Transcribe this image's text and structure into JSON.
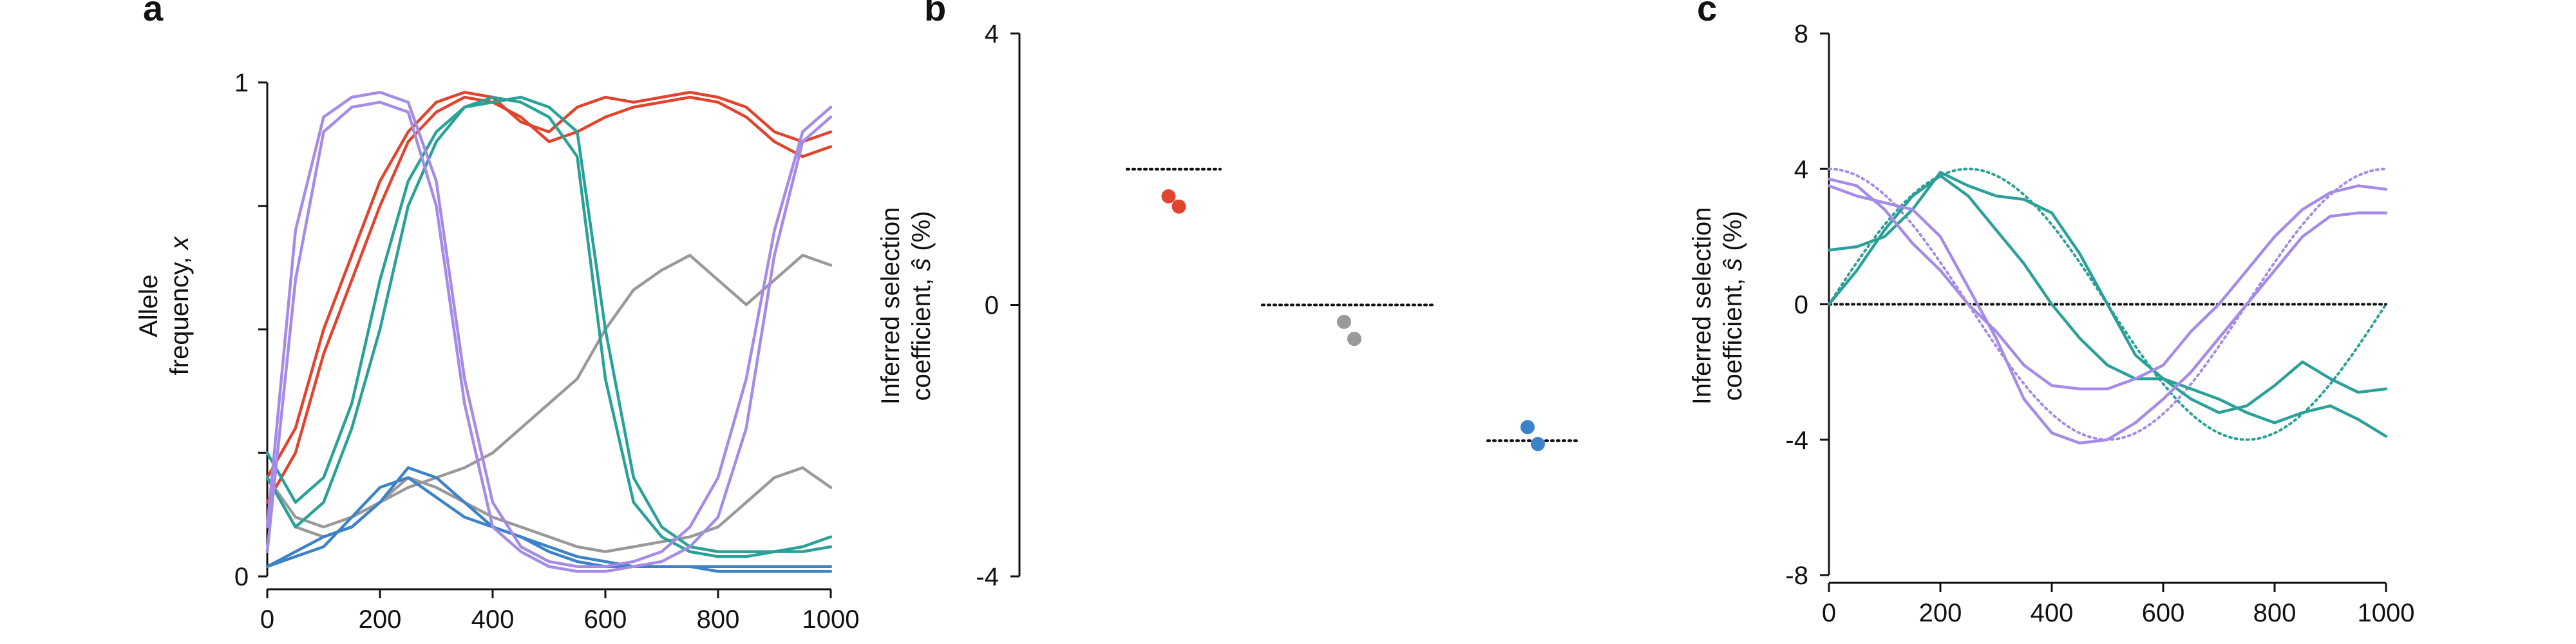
{
  "colors": {
    "red": "#e0442e",
    "gray": "#999999",
    "blue": "#3b82c8",
    "teal": "#2aa198",
    "purple": "#a58be8",
    "black": "#111111"
  },
  "chart_data": [
    {
      "panel": "a",
      "type": "line",
      "title": "",
      "xlabel": "",
      "ylabel_line1": "Allele",
      "ylabel_line2": "frequency,",
      "ylabel_var": "x",
      "xlim": [
        0,
        1000
      ],
      "ylim": [
        0,
        1
      ],
      "xticks": [
        0,
        200,
        400,
        600,
        800,
        1000
      ],
      "xtick_labels": [
        "0",
        "200",
        "400",
        "600",
        "800",
        "1000"
      ],
      "yticks": [
        0,
        0.25,
        0.5,
        0.75,
        1
      ],
      "ytick_labels": [
        "0",
        "",
        "",
        "",
        "1"
      ],
      "grid": false,
      "series": [
        {
          "color": "red",
          "x": [
            0,
            50,
            100,
            150,
            200,
            250,
            300,
            350,
            400,
            450,
            500,
            550,
            600,
            650,
            700,
            750,
            800,
            850,
            900,
            950,
            1000
          ],
          "y": [
            0.2,
            0.3,
            0.5,
            0.65,
            0.8,
            0.9,
            0.96,
            0.98,
            0.97,
            0.92,
            0.9,
            0.95,
            0.97,
            0.96,
            0.97,
            0.98,
            0.97,
            0.95,
            0.9,
            0.88,
            0.9
          ]
        },
        {
          "color": "red",
          "x": [
            0,
            50,
            100,
            150,
            200,
            250,
            300,
            350,
            400,
            450,
            500,
            550,
            600,
            650,
            700,
            750,
            800,
            850,
            900,
            950,
            1000
          ],
          "y": [
            0.15,
            0.25,
            0.45,
            0.6,
            0.75,
            0.88,
            0.94,
            0.97,
            0.96,
            0.93,
            0.88,
            0.9,
            0.93,
            0.95,
            0.96,
            0.97,
            0.96,
            0.93,
            0.88,
            0.85,
            0.87
          ]
        },
        {
          "color": "gray",
          "x": [
            0,
            50,
            100,
            150,
            200,
            250,
            300,
            350,
            400,
            450,
            500,
            550,
            600,
            650,
            700,
            750,
            800,
            850,
            900,
            950,
            1000
          ],
          "y": [
            0.2,
            0.12,
            0.1,
            0.12,
            0.15,
            0.18,
            0.2,
            0.22,
            0.25,
            0.3,
            0.35,
            0.4,
            0.5,
            0.58,
            0.62,
            0.65,
            0.6,
            0.55,
            0.6,
            0.65,
            0.63
          ]
        },
        {
          "color": "gray",
          "x": [
            0,
            50,
            100,
            150,
            200,
            250,
            300,
            350,
            400,
            450,
            500,
            550,
            600,
            650,
            700,
            750,
            800,
            850,
            900,
            950,
            1000
          ],
          "y": [
            0.2,
            0.1,
            0.08,
            0.1,
            0.15,
            0.2,
            0.18,
            0.15,
            0.12,
            0.1,
            0.08,
            0.06,
            0.05,
            0.06,
            0.07,
            0.08,
            0.1,
            0.15,
            0.2,
            0.22,
            0.18
          ]
        },
        {
          "color": "blue",
          "x": [
            0,
            50,
            100,
            150,
            200,
            250,
            300,
            350,
            400,
            450,
            500,
            550,
            600,
            650,
            700,
            750,
            800,
            850,
            900,
            950,
            1000
          ],
          "y": [
            0.02,
            0.05,
            0.08,
            0.1,
            0.15,
            0.22,
            0.2,
            0.15,
            0.1,
            0.08,
            0.06,
            0.04,
            0.03,
            0.02,
            0.02,
            0.02,
            0.01,
            0.01,
            0.01,
            0.01,
            0.01
          ]
        },
        {
          "color": "blue",
          "x": [
            0,
            50,
            100,
            150,
            200,
            250,
            300,
            350,
            400,
            450,
            500,
            550,
            600,
            650,
            700,
            750,
            800,
            850,
            900,
            950,
            1000
          ],
          "y": [
            0.02,
            0.04,
            0.06,
            0.12,
            0.18,
            0.2,
            0.16,
            0.12,
            0.1,
            0.08,
            0.05,
            0.03,
            0.02,
            0.02,
            0.02,
            0.02,
            0.02,
            0.02,
            0.02,
            0.02,
            0.02
          ]
        },
        {
          "color": "teal",
          "x": [
            0,
            50,
            100,
            150,
            200,
            250,
            300,
            350,
            400,
            450,
            500,
            550,
            600,
            650,
            700,
            750,
            800,
            850,
            900,
            950,
            1000
          ],
          "y": [
            0.25,
            0.15,
            0.2,
            0.35,
            0.6,
            0.8,
            0.9,
            0.95,
            0.96,
            0.97,
            0.95,
            0.9,
            0.5,
            0.2,
            0.1,
            0.06,
            0.05,
            0.05,
            0.05,
            0.06,
            0.08
          ]
        },
        {
          "color": "teal",
          "x": [
            0,
            50,
            100,
            150,
            200,
            250,
            300,
            350,
            400,
            450,
            500,
            550,
            600,
            650,
            700,
            750,
            800,
            850,
            900,
            950,
            1000
          ],
          "y": [
            0.2,
            0.1,
            0.15,
            0.3,
            0.5,
            0.75,
            0.88,
            0.95,
            0.97,
            0.96,
            0.93,
            0.85,
            0.4,
            0.15,
            0.08,
            0.05,
            0.04,
            0.04,
            0.05,
            0.05,
            0.06
          ]
        },
        {
          "color": "purple",
          "x": [
            0,
            50,
            100,
            150,
            200,
            250,
            300,
            350,
            400,
            450,
            500,
            550,
            600,
            650,
            700,
            750,
            800,
            850,
            900,
            950,
            1000
          ],
          "y": [
            0.1,
            0.7,
            0.93,
            0.97,
            0.98,
            0.96,
            0.8,
            0.4,
            0.15,
            0.06,
            0.03,
            0.02,
            0.02,
            0.03,
            0.05,
            0.1,
            0.2,
            0.4,
            0.7,
            0.9,
            0.95
          ]
        },
        {
          "color": "purple",
          "x": [
            0,
            50,
            100,
            150,
            200,
            250,
            300,
            350,
            400,
            450,
            500,
            550,
            600,
            650,
            700,
            750,
            800,
            850,
            900,
            950,
            1000
          ],
          "y": [
            0.05,
            0.6,
            0.9,
            0.95,
            0.96,
            0.94,
            0.75,
            0.35,
            0.1,
            0.05,
            0.02,
            0.01,
            0.01,
            0.02,
            0.03,
            0.06,
            0.12,
            0.3,
            0.65,
            0.88,
            0.93
          ]
        }
      ]
    },
    {
      "panel": "b",
      "type": "scatter",
      "title": "",
      "xlabel": "",
      "ylabel_line1": "Inferred selection",
      "ylabel_line2": "coefficient,",
      "ylabel_var": "ŝ",
      "ylabel_unit": "(%)",
      "ylim": [
        -4,
        4
      ],
      "yticks": [
        -4,
        0,
        4
      ],
      "ytick_labels": [
        "-4",
        "0",
        "4"
      ],
      "groups": [
        {
          "color": "red",
          "true_value": 2,
          "points": [
            1.6,
            1.45
          ]
        },
        {
          "color": "gray",
          "true_value": 0,
          "points": [
            -0.25,
            -0.5
          ]
        },
        {
          "color": "blue",
          "true_value": -2,
          "points": [
            -1.8,
            -2.05
          ]
        }
      ]
    },
    {
      "panel": "c",
      "type": "line",
      "title": "",
      "xlabel": "",
      "ylabel_line1": "Inferred selection",
      "ylabel_line2": "coefficient,",
      "ylabel_var": "ŝ",
      "ylabel_unit": "(%)",
      "xlim": [
        0,
        1000
      ],
      "ylim": [
        -8,
        8
      ],
      "xticks": [
        0,
        200,
        400,
        600,
        800,
        1000
      ],
      "xtick_labels": [
        "0",
        "200",
        "400",
        "600",
        "800",
        "1000"
      ],
      "yticks": [
        -8,
        -4,
        0,
        4,
        8
      ],
      "ytick_labels": [
        "-8",
        "-4",
        "0",
        "4",
        "8"
      ],
      "grid": false,
      "series": [
        {
          "color": "teal",
          "x": [
            0,
            50,
            100,
            150,
            200,
            250,
            300,
            350,
            400,
            450,
            500,
            550,
            600,
            650,
            700,
            750,
            800,
            850,
            900,
            950,
            1000
          ],
          "y": [
            1.6,
            1.7,
            2.0,
            2.8,
            3.9,
            3.5,
            3.2,
            3.1,
            2.7,
            1.5,
            0.0,
            -1.5,
            -2.2,
            -2.8,
            -3.2,
            -3.0,
            -2.4,
            -1.7,
            -2.2,
            -2.6,
            -2.5
          ]
        },
        {
          "color": "teal",
          "x": [
            0,
            50,
            100,
            150,
            200,
            250,
            300,
            350,
            400,
            450,
            500,
            550,
            600,
            650,
            700,
            750,
            800,
            850,
            900,
            950,
            1000
          ],
          "y": [
            0.0,
            1.0,
            2.2,
            3.2,
            3.8,
            3.2,
            2.2,
            1.2,
            0.0,
            -1.0,
            -1.8,
            -2.2,
            -2.2,
            -2.5,
            -2.8,
            -3.2,
            -3.5,
            -3.2,
            -3.0,
            -3.4,
            -3.9
          ]
        },
        {
          "color": "purple",
          "x": [
            0,
            50,
            100,
            150,
            200,
            250,
            300,
            350,
            400,
            450,
            500,
            550,
            600,
            650,
            700,
            750,
            800,
            850,
            900,
            950,
            1000
          ],
          "y": [
            3.7,
            3.5,
            2.8,
            1.8,
            1.0,
            0.0,
            -0.8,
            -1.8,
            -2.4,
            -2.5,
            -2.5,
            -2.2,
            -1.8,
            -0.8,
            0.0,
            1.0,
            2.0,
            2.8,
            3.3,
            3.5,
            3.4
          ]
        },
        {
          "color": "purple",
          "x": [
            0,
            50,
            100,
            150,
            200,
            250,
            300,
            350,
            400,
            450,
            500,
            550,
            600,
            650,
            700,
            750,
            800,
            850,
            900,
            950,
            1000
          ],
          "y": [
            3.5,
            3.2,
            3.0,
            2.8,
            2.0,
            0.5,
            -1.0,
            -2.8,
            -3.8,
            -4.1,
            -4.0,
            -3.5,
            -2.8,
            -2.0,
            -1.0,
            0.0,
            1.0,
            2.0,
            2.6,
            2.7,
            2.7
          ]
        }
      ],
      "reference_curves": [
        {
          "color": "teal",
          "function": "4sin",
          "amplitude": 4,
          "period": 1000
        },
        {
          "color": "purple",
          "function": "4cos",
          "amplitude": 4,
          "period": 1000
        },
        {
          "color": "black",
          "function": "zero",
          "amplitude": 0,
          "period": 1000
        }
      ]
    }
  ]
}
